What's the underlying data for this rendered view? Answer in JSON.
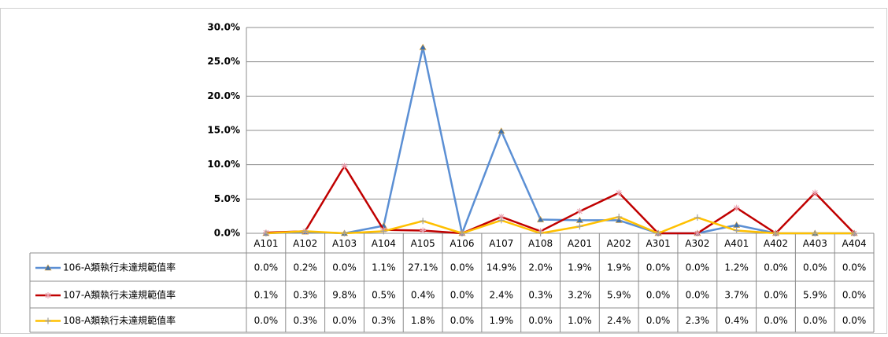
{
  "chart_data": {
    "type": "line",
    "categories": [
      "A101",
      "A102",
      "A103",
      "A104",
      "A105",
      "A106",
      "A107",
      "A108",
      "A201",
      "A202",
      "A301",
      "A302",
      "A401",
      "A402",
      "A403",
      "A404"
    ],
    "ylim": [
      0,
      30
    ],
    "yticks": [
      {
        "value": 0,
        "label": "0.0%"
      },
      {
        "value": 5,
        "label": "5.0%"
      },
      {
        "value": 10,
        "label": "10.0%"
      },
      {
        "value": 15,
        "label": "15.0%"
      },
      {
        "value": 20,
        "label": "20.0%"
      },
      {
        "value": 25,
        "label": "25.0%"
      },
      {
        "value": 30,
        "label": "30.0%"
      }
    ],
    "grid": true,
    "series": [
      {
        "name": "106-A類執行未達規範值率",
        "color": "#5b8fd4",
        "marker": "triangle",
        "values": [
          0.0,
          0.2,
          0.0,
          1.1,
          27.1,
          0.0,
          14.9,
          2.0,
          1.9,
          1.9,
          0.0,
          0.0,
          1.2,
          0.0,
          0.0,
          0.0
        ],
        "value_labels": [
          "0.0%",
          "0.2%",
          "0.0%",
          "1.1%",
          "27.1%",
          "0.0%",
          "14.9%",
          "2.0%",
          "1.9%",
          "1.9%",
          "0.0%",
          "0.0%",
          "1.2%",
          "0.0%",
          "0.0%",
          "0.0%"
        ]
      },
      {
        "name": "107-A類執行未達規範值率",
        "color": "#c00000",
        "marker": "star",
        "values": [
          0.1,
          0.3,
          9.8,
          0.5,
          0.4,
          0.0,
          2.4,
          0.3,
          3.2,
          5.9,
          0.0,
          0.0,
          3.7,
          0.0,
          5.9,
          0.0
        ],
        "value_labels": [
          "0.1%",
          "0.3%",
          "9.8%",
          "0.5%",
          "0.4%",
          "0.0%",
          "2.4%",
          "0.3%",
          "3.2%",
          "5.9%",
          "0.0%",
          "0.0%",
          "3.7%",
          "0.0%",
          "5.9%",
          "0.0%"
        ]
      },
      {
        "name": "108-A類執行未達規範值率",
        "color": "#ffc000",
        "marker": "plus",
        "values": [
          0.0,
          0.3,
          0.0,
          0.3,
          1.8,
          0.0,
          1.9,
          0.0,
          1.0,
          2.4,
          0.0,
          2.3,
          0.4,
          0.0,
          0.0,
          0.0
        ],
        "value_labels": [
          "0.0%",
          "0.3%",
          "0.0%",
          "0.3%",
          "1.8%",
          "0.0%",
          "1.9%",
          "0.0%",
          "1.0%",
          "2.4%",
          "0.0%",
          "2.3%",
          "0.4%",
          "0.0%",
          "0.0%",
          "0.0%"
        ]
      }
    ]
  }
}
